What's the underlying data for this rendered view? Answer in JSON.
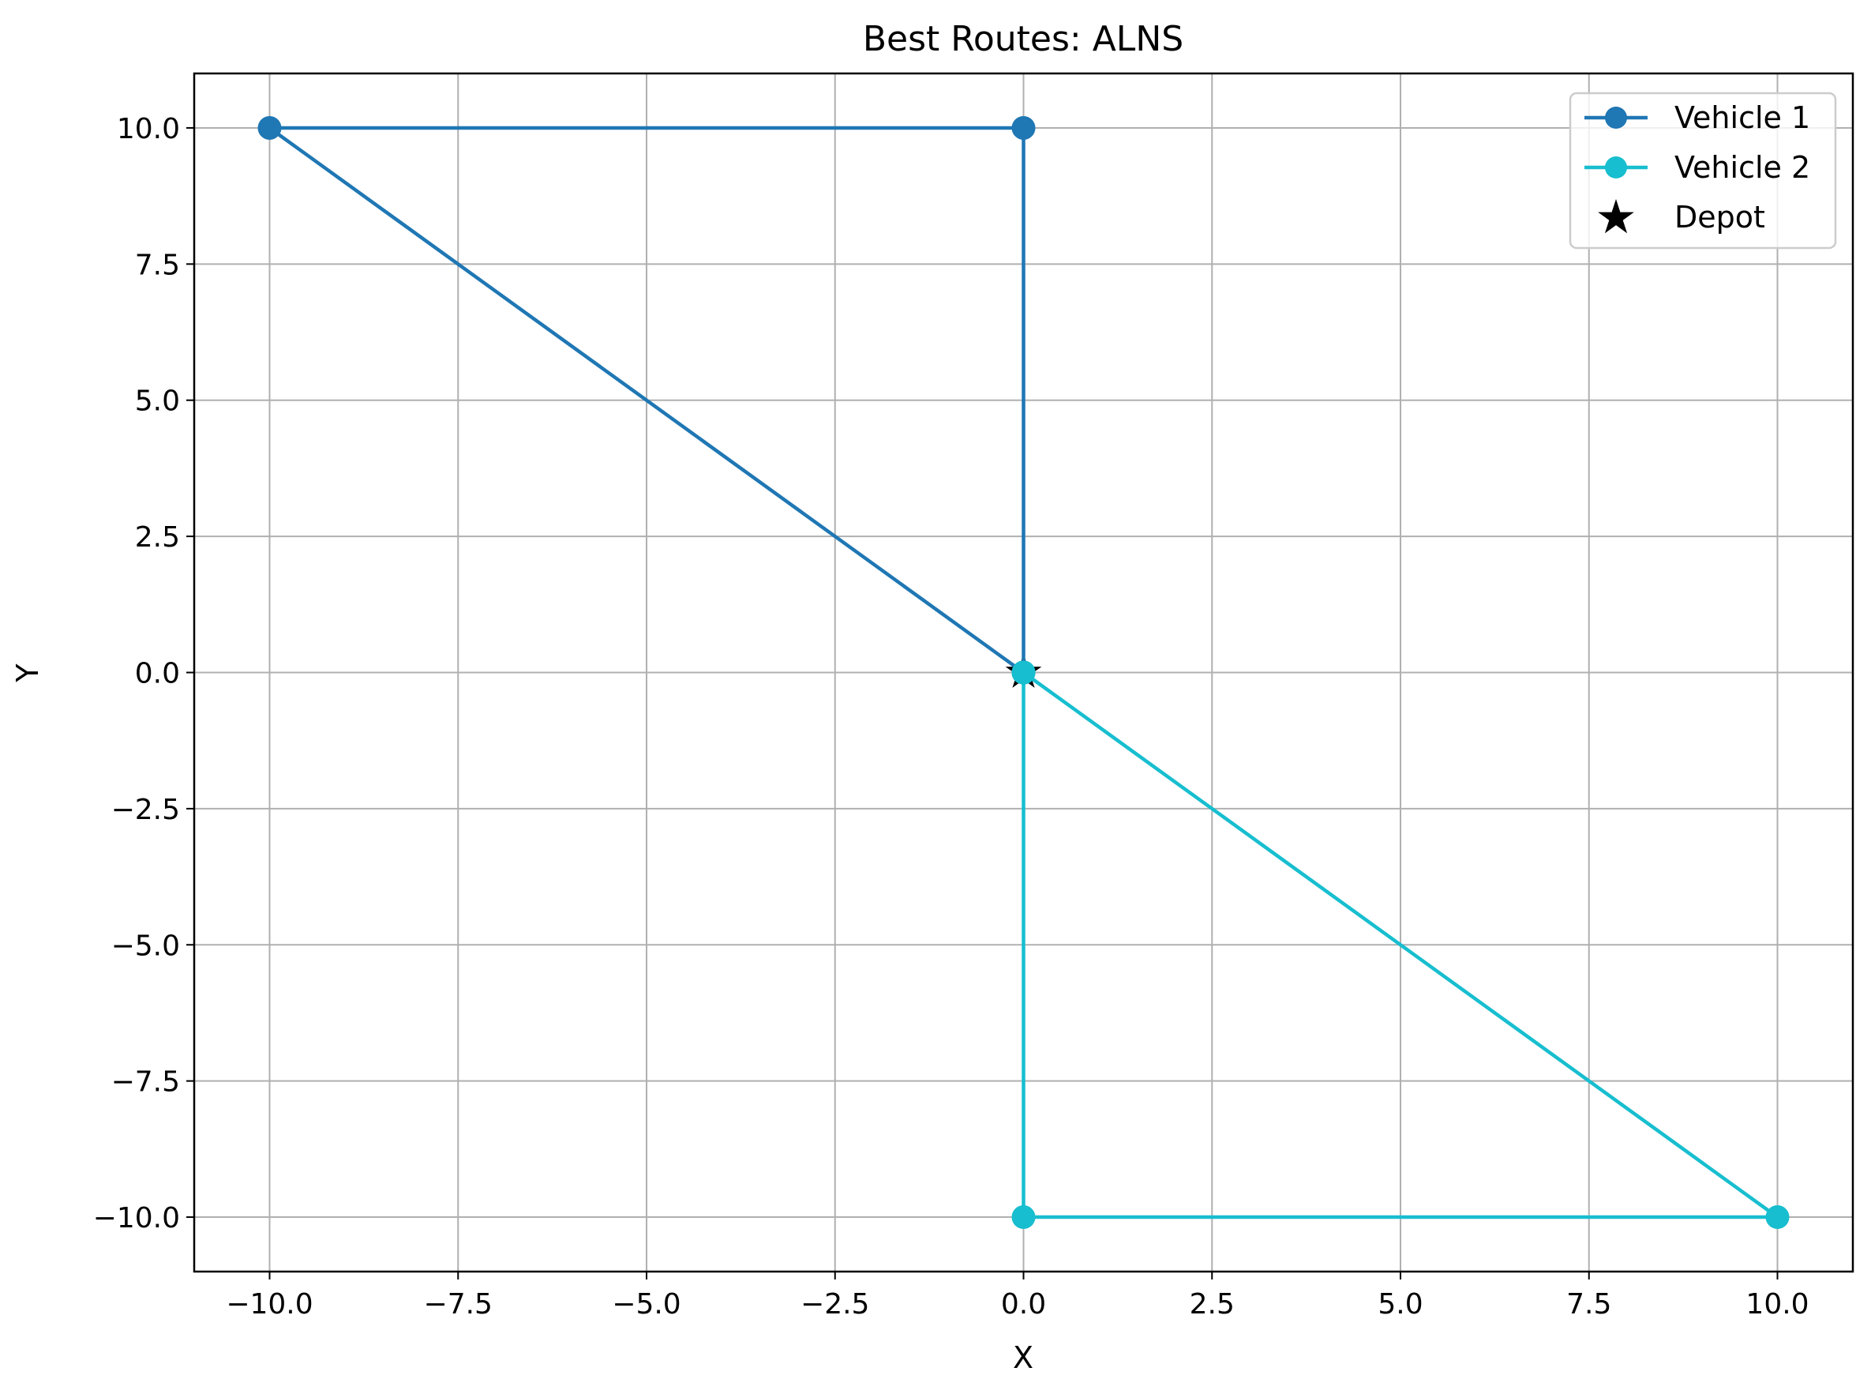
{
  "chart_data": {
    "type": "line",
    "title": "Best Routes: ALNS",
    "xlabel": "X",
    "ylabel": "Y",
    "xlim": [
      -11,
      11
    ],
    "ylim": [
      -11,
      11
    ],
    "xticks": [
      -10.0,
      -7.5,
      -5.0,
      -2.5,
      0.0,
      2.5,
      5.0,
      7.5,
      10.0
    ],
    "yticks": [
      -10.0,
      -7.5,
      -5.0,
      -2.5,
      0.0,
      2.5,
      5.0,
      7.5,
      10.0
    ],
    "xtick_labels": [
      "−10.0",
      "−7.5",
      "−5.0",
      "−2.5",
      "0.0",
      "2.5",
      "5.0",
      "7.5",
      "10.0"
    ],
    "ytick_labels": [
      "−10.0",
      "−7.5",
      "−5.0",
      "−2.5",
      "0.0",
      "2.5",
      "5.0",
      "7.5",
      "10.0"
    ],
    "grid": true,
    "legend_position": "top-right",
    "series": [
      {
        "name": "Vehicle 1",
        "color": "#1f77b4",
        "marker": "circle",
        "points": [
          [
            0,
            0
          ],
          [
            0,
            10
          ],
          [
            -10,
            10
          ],
          [
            0,
            0
          ]
        ]
      },
      {
        "name": "Vehicle 2",
        "color": "#17becf",
        "marker": "circle",
        "points": [
          [
            0,
            0
          ],
          [
            0,
            -10
          ],
          [
            10,
            -10
          ],
          [
            0,
            0
          ]
        ]
      }
    ],
    "depot": {
      "name": "Depot",
      "color": "#000000",
      "marker": "star",
      "point": [
        0,
        0
      ]
    }
  }
}
